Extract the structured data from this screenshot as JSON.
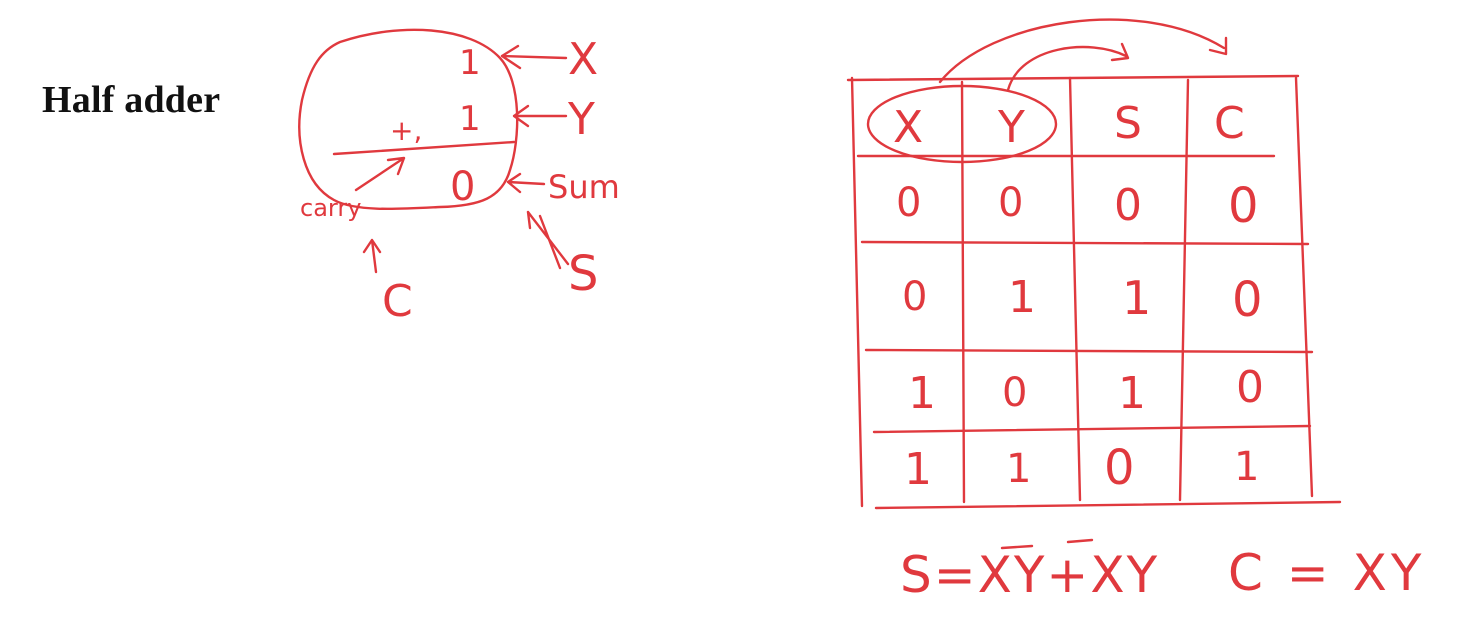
{
  "title": "Half adder",
  "ink_color": "#e0393e",
  "sketch": {
    "x_digit": "1",
    "y_digit": "1",
    "plus": "+,",
    "sum_digit": "0",
    "x_label": "X",
    "y_label": "Y",
    "sum_label": "Sum",
    "carry_label": "carry",
    "c_label": "C",
    "s_label": "S"
  },
  "truth_table": {
    "headers": [
      "X",
      "Y",
      "S",
      "C"
    ],
    "rows": [
      [
        "0",
        "0",
        "0",
        "0"
      ],
      [
        "0",
        "1",
        "1",
        "0"
      ],
      [
        "1",
        "0",
        "1",
        "0"
      ],
      [
        "1",
        "1",
        "0",
        "1"
      ]
    ]
  },
  "equations": {
    "sum": "S=XY+XY",
    "carry": "C = XY"
  }
}
